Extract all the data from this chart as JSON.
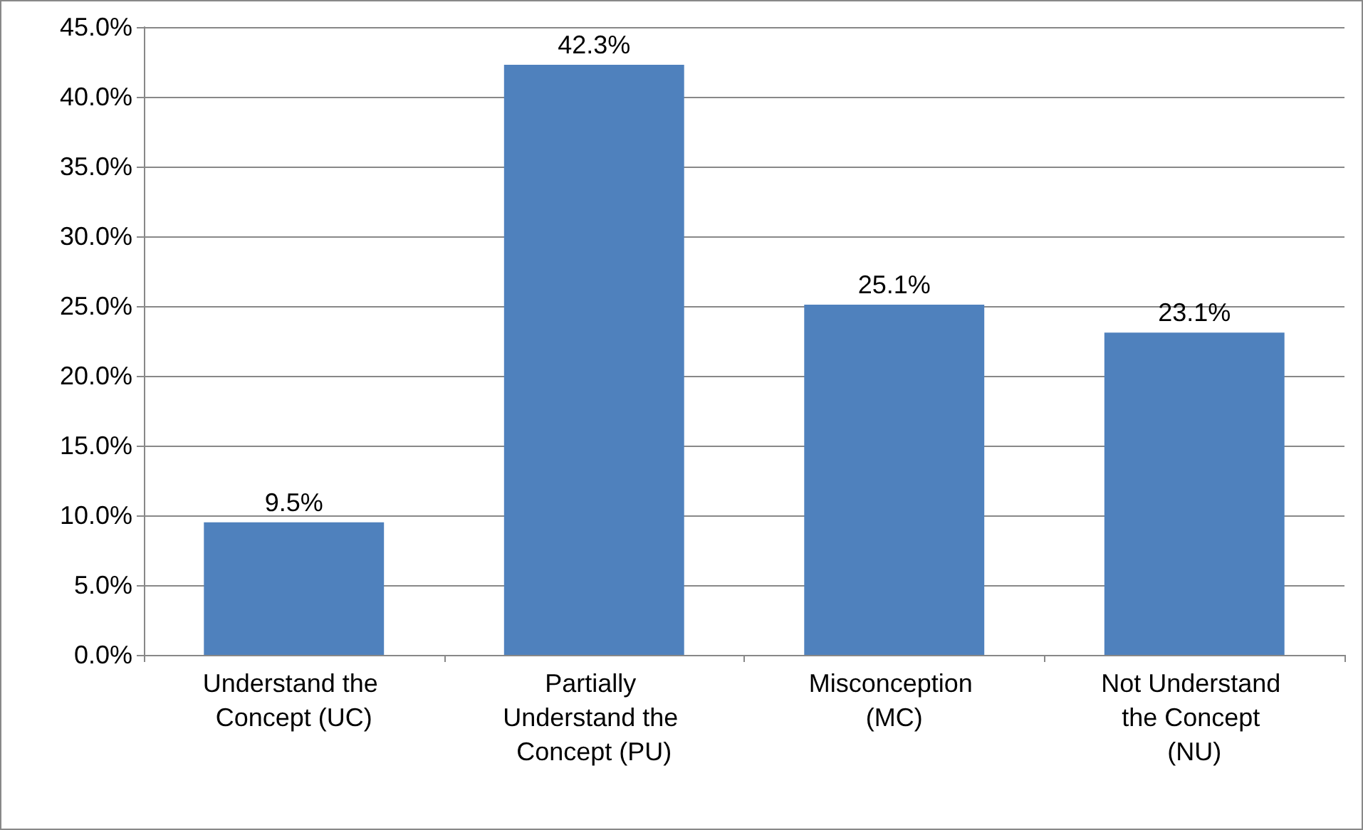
{
  "chart_data": {
    "type": "bar",
    "categories": [
      "Understand the Concept (UC)",
      "Partially Understand the Concept (PU)",
      "Misconception (MC)",
      "Not Understand the Concept (NU)"
    ],
    "values": [
      9.5,
      42.3,
      25.1,
      23.1
    ],
    "value_labels": [
      "9.5%",
      "42.3%",
      "25.1%",
      "23.1%"
    ],
    "color": "#4f81bd",
    "ylim": [
      0,
      45
    ],
    "yticks": [
      {
        "value": 0,
        "label": "0.0%"
      },
      {
        "value": 5,
        "label": "5.0%"
      },
      {
        "value": 10,
        "label": "10.0%"
      },
      {
        "value": 15,
        "label": "15.0%"
      },
      {
        "value": 20,
        "label": "20.0%"
      },
      {
        "value": 25,
        "label": "25.0%"
      },
      {
        "value": 30,
        "label": "30.0%"
      },
      {
        "value": 35,
        "label": "35.0%"
      },
      {
        "value": 40,
        "label": "40.0%"
      },
      {
        "value": 45,
        "label": "45.0%"
      }
    ],
    "grid": "y"
  }
}
